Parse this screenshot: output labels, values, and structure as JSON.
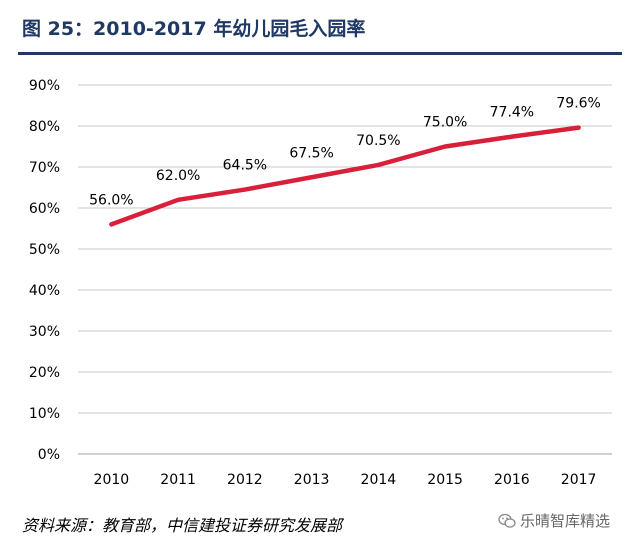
{
  "title": "图 25：2010-2017 年幼儿园毛入园率",
  "source": "资料来源：教育部，中信建投证券研究发展部",
  "watermark": "乐晴智库精选",
  "colors": {
    "title": "#1f3864",
    "line": "#d9203a",
    "grid": "#c8c8c8"
  },
  "chart_data": {
    "type": "line",
    "title": "",
    "xlabel": "",
    "ylabel": "",
    "categories": [
      "2010",
      "2011",
      "2012",
      "2013",
      "2014",
      "2015",
      "2016",
      "2017"
    ],
    "series": [
      {
        "values": [
          56.0,
          62.0,
          64.5,
          67.5,
          70.5,
          75.0,
          77.4,
          79.6
        ],
        "labels": [
          "56.0%",
          "62.0%",
          "64.5%",
          "67.5%",
          "70.5%",
          "75.0%",
          "77.4%",
          "79.6%"
        ]
      }
    ],
    "yticks": [
      "0%",
      "10%",
      "20%",
      "30%",
      "40%",
      "50%",
      "60%",
      "70%",
      "80%",
      "90%"
    ],
    "ylim": [
      0,
      90
    ],
    "grid": true,
    "legend": "none"
  }
}
